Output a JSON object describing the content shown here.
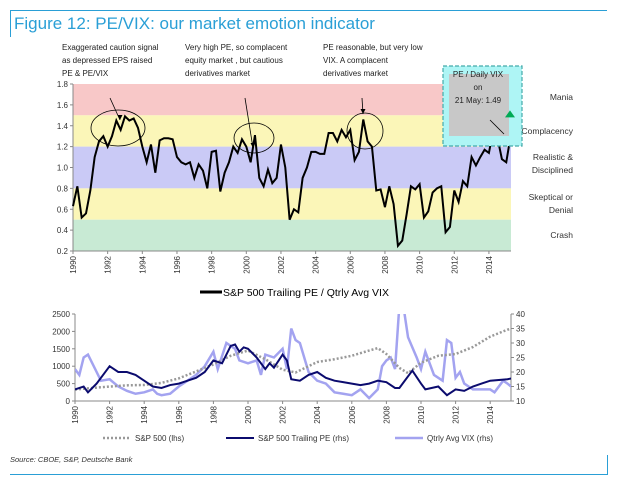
{
  "title": "Figure 12: PE/VIX: our market emotion indicator",
  "source": "Source: CBOE, S&P, Deutsche Bank",
  "chart_data": [
    {
      "type": "line",
      "title": "",
      "ylim": [
        0.2,
        1.8
      ],
      "yticks": [
        "0.2",
        "0.4",
        "0.6",
        "0.8",
        "1.0",
        "1.2",
        "1.4",
        "1.6",
        "1.8"
      ],
      "xticks": [
        "1990",
        "1992",
        "1994",
        "1996",
        "1998",
        "2000",
        "2002",
        "2004",
        "2006",
        "2008",
        "2010",
        "2012",
        "2014"
      ],
      "grid": false,
      "legend": "bottom",
      "bands": [
        {
          "label": "Mania",
          "from": 1.5,
          "to": 1.8,
          "color": "#f8c8c8"
        },
        {
          "label": "Complacency",
          "from": 1.2,
          "to": 1.5,
          "color": "#fbf6b8"
        },
        {
          "label": "Realistic & Disciplined",
          "from": 0.8,
          "to": 1.2,
          "color": "#cacaf6"
        },
        {
          "label": "Skeptical or Denial",
          "from": 0.5,
          "to": 0.8,
          "color": "#fbf6b8"
        },
        {
          "label": "Crash",
          "from": 0.2,
          "to": 0.5,
          "color": "#c8ead4"
        }
      ],
      "series": [
        {
          "name": "S&P 500 Trailing PE / Qtrly Avg VIX",
          "color": "#000000",
          "x_start": 1990,
          "x_step": 0.25,
          "values": [
            0.63,
            0.82,
            0.52,
            0.56,
            0.78,
            1.1,
            1.25,
            1.3,
            1.2,
            1.3,
            1.45,
            1.36,
            1.49,
            1.45,
            1.47,
            1.38,
            1.2,
            1.05,
            1.22,
            0.95,
            1.26,
            1.28,
            1.28,
            1.27,
            1.1,
            1.05,
            1.03,
            1.05,
            0.9,
            1.03,
            0.97,
            0.8,
            1.15,
            1.16,
            0.77,
            0.95,
            1.05,
            1.2,
            1.14,
            1.27,
            1.2,
            1.05,
            1.31,
            0.9,
            0.82,
            0.98,
            0.85,
            0.9,
            1.22,
            1.0,
            0.5,
            0.6,
            0.57,
            0.9,
            1.0,
            1.15,
            1.15,
            1.13,
            1.13,
            1.33,
            1.33,
            1.25,
            1.36,
            1.29,
            1.36,
            1.07,
            1.15,
            1.46,
            1.25,
            1.2,
            0.78,
            0.79,
            0.62,
            0.82,
            0.65,
            0.25,
            0.3,
            0.55,
            0.82,
            0.79,
            0.84,
            0.52,
            0.58,
            0.76,
            0.8,
            0.82,
            0.38,
            0.43,
            0.78,
            0.67,
            0.87,
            0.82,
            1.1,
            1.02,
            1.1,
            1.17,
            1.14,
            1.36,
            1.28,
            1.08,
            1.05,
            1.3
          ]
        }
      ],
      "annotations": [
        {
          "lines": [
            "Exaggerated caution signal",
            "as depressed EPS raised",
            "PE & PE/VIX"
          ]
        },
        {
          "lines": [
            "Very high PE, so complacent",
            "equity market , but cautious",
            "derivatives market"
          ]
        },
        {
          "lines": [
            "PE reasonable, but very low",
            "VIX. A complacent",
            "derivatives market"
          ]
        },
        {
          "lines": [
            "PE / Daily VIX",
            "on",
            "21 May: 1.49"
          ],
          "value": 1.49
        }
      ]
    },
    {
      "type": "line",
      "title": "",
      "ylim_left": [
        0,
        2500
      ],
      "ylim_right": [
        10,
        40
      ],
      "yticks_left": [
        "0",
        "500",
        "1000",
        "1500",
        "2000",
        "2500"
      ],
      "yticks_right": [
        "10",
        "15",
        "20",
        "25",
        "30",
        "35",
        "40"
      ],
      "xticks": [
        "1990",
        "1992",
        "1994",
        "1996",
        "1998",
        "2000",
        "2002",
        "2004",
        "2006",
        "2008",
        "2010",
        "2012",
        "2014"
      ],
      "legend": "bottom",
      "series": [
        {
          "name": "S&P 500 (lhs)",
          "axis": "left",
          "color": "#999999",
          "x": [
            1990,
            1991,
            1992,
            1993,
            1994,
            1995,
            1996,
            1997,
            1998,
            1999,
            2000,
            2001,
            2002,
            2002.75,
            2003,
            2004,
            2005,
            2006,
            2007,
            2007.5,
            2008,
            2008.75,
            2009.25,
            2010,
            2011,
            2012,
            2013,
            2014,
            2015,
            2015.4
          ],
          "y": [
            330,
            375,
            415,
            450,
            460,
            520,
            650,
            850,
            1050,
            1300,
            1450,
            1200,
            900,
            820,
            880,
            1120,
            1200,
            1300,
            1450,
            1520,
            1350,
            950,
            800,
            1100,
            1300,
            1350,
            1550,
            1850,
            2050,
            2100
          ]
        },
        {
          "name": "S&P 500 Trailing PE (rhs)",
          "axis": "right",
          "color": "#0b0b6e",
          "x": [
            1990,
            1990.5,
            1990.75,
            1991.25,
            1991.5,
            1992,
            1992.5,
            1993,
            1993.5,
            1994,
            1994.5,
            1995,
            1995.5,
            1996,
            1996.5,
            1997,
            1997.5,
            1998,
            1998.5,
            1999,
            1999.25,
            1999.5,
            1999.75,
            2000,
            2000.5,
            2001,
            2001.25,
            2001.5,
            2002,
            2002.25,
            2002.5,
            2003,
            2003.5,
            2004,
            2004.5,
            2005,
            2005.5,
            2006,
            2006.5,
            2007,
            2007.5,
            2008,
            2008.5,
            2008.75,
            2009.5,
            2010,
            2010.25,
            2011,
            2011.5,
            2012,
            2012.5,
            2013,
            2013.5,
            2014,
            2015,
            2015.4
          ],
          "y": [
            14,
            15,
            13,
            16,
            18,
            22,
            20,
            20,
            19,
            17,
            15,
            14.5,
            15.5,
            16,
            17,
            18,
            20,
            24,
            23,
            29,
            29.5,
            27,
            28.5,
            28,
            25,
            21,
            23,
            21.5,
            26,
            24,
            17.5,
            17,
            19,
            20,
            18,
            17,
            16.5,
            16,
            15.5,
            16,
            17,
            16.5,
            14.5,
            14.5,
            20.5,
            16,
            14,
            15,
            12,
            14,
            13.5,
            15,
            16,
            17,
            17.5,
            18
          ]
        },
        {
          "name": "Qtrly Avg VIX (rhs)",
          "axis": "right",
          "color": "#a3a3f0",
          "x": [
            1990,
            1990.25,
            1990.5,
            1990.75,
            1991.25,
            1991.5,
            1992,
            1992.5,
            1993,
            1993.5,
            1994,
            1994.5,
            1994.75,
            1995,
            1995.5,
            1996,
            1996.5,
            1997,
            1997.5,
            1998,
            1998.25,
            1998.75,
            1999.25,
            1999.5,
            2000,
            2000.5,
            2000.75,
            2001,
            2001.5,
            2002,
            2002.25,
            2002.5,
            2002.75,
            2003,
            2003.5,
            2004,
            2004.5,
            2005,
            2005.5,
            2006,
            2006.5,
            2007,
            2007.5,
            2007.75,
            2008,
            2008.25,
            2008.5,
            2008.75,
            2009,
            2009.25,
            2009.75,
            2010,
            2010.25,
            2010.75,
            2011,
            2011.25,
            2011.5,
            2011.75,
            2012,
            2012.25,
            2012.5,
            2013,
            2013.5,
            2014,
            2014.25,
            2014.75,
            2015,
            2015.4
          ],
          "y": [
            21,
            19,
            25,
            26,
            20,
            17,
            17.5,
            15,
            13.5,
            12.5,
            13,
            14,
            12.5,
            12,
            12.5,
            15,
            17,
            19,
            22,
            27,
            21,
            30,
            28,
            24,
            23,
            24,
            19,
            26,
            25,
            28,
            21,
            35,
            31,
            30,
            20,
            17,
            16,
            13,
            12.5,
            12,
            14,
            11,
            14,
            22,
            24,
            25,
            21,
            45,
            42,
            32,
            25,
            21,
            27,
            19,
            18,
            17,
            31,
            30,
            18,
            20,
            16,
            14,
            14,
            14,
            13,
            17,
            16,
            14
          ]
        }
      ]
    }
  ]
}
